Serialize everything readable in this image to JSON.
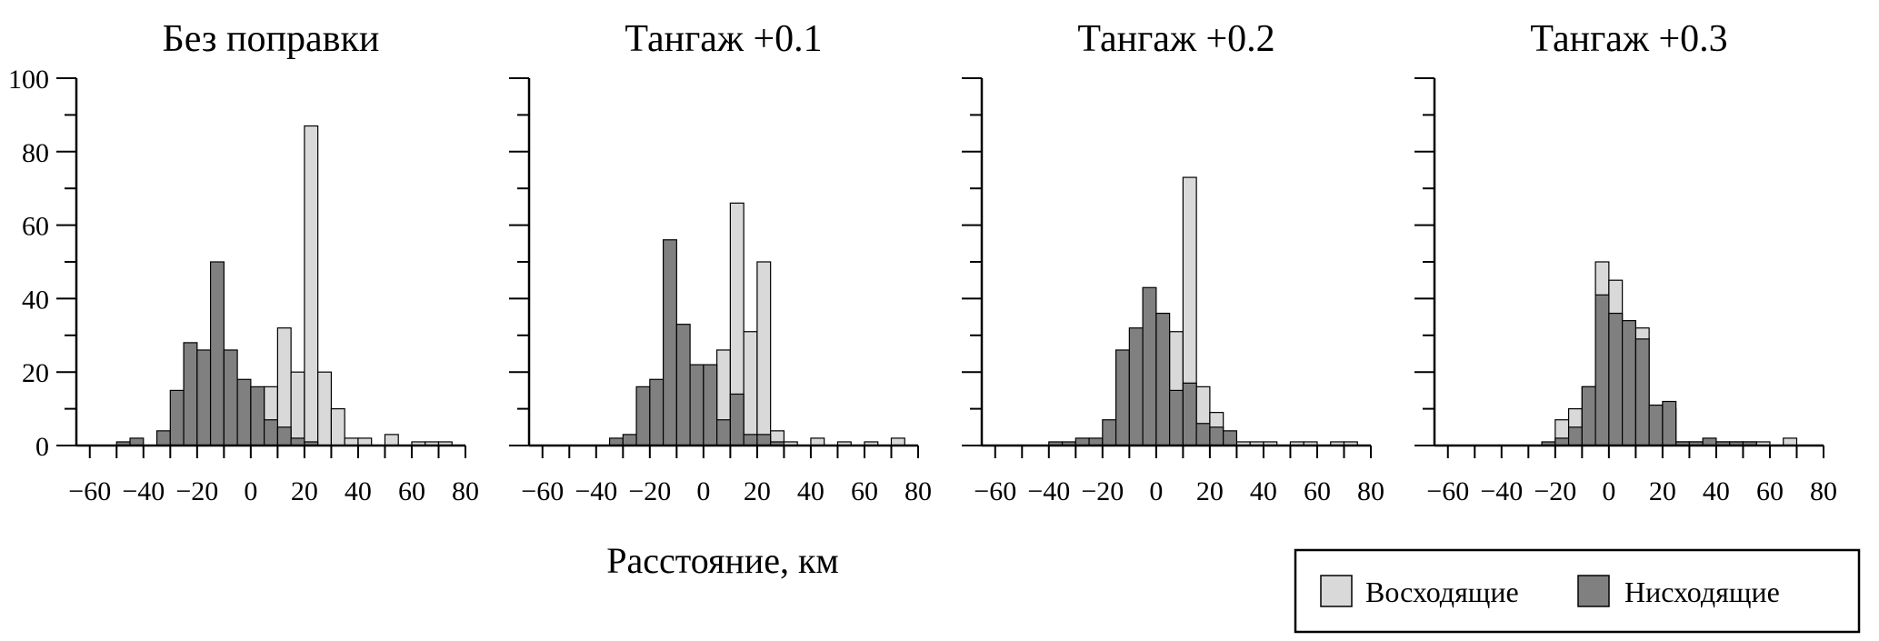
{
  "xlabel": "Расстояние, км",
  "legend": [
    {
      "label": "Восходящие",
      "color": "#d9d9d9"
    },
    {
      "label": "Нисходящие",
      "color": "#808080"
    }
  ],
  "chart_data": [
    {
      "type": "histogram",
      "title": "Без поправки",
      "xlim": [
        -65,
        80
      ],
      "ylim": [
        0,
        100
      ],
      "xticks": [
        -60,
        -40,
        -20,
        0,
        20,
        40,
        60,
        80
      ],
      "yticks": [
        0,
        20,
        40,
        60,
        80,
        100
      ],
      "bin_width": 5,
      "series": [
        {
          "name": "Восходящие",
          "bins": [
            {
              "x": 5,
              "y": 16
            },
            {
              "x": 10,
              "y": 32
            },
            {
              "x": 15,
              "y": 20
            },
            {
              "x": 20,
              "y": 87
            },
            {
              "x": 25,
              "y": 20
            },
            {
              "x": 30,
              "y": 10
            },
            {
              "x": 35,
              "y": 2
            },
            {
              "x": 40,
              "y": 2
            },
            {
              "x": 50,
              "y": 3
            },
            {
              "x": 60,
              "y": 1
            },
            {
              "x": 65,
              "y": 1
            },
            {
              "x": 70,
              "y": 1
            }
          ]
        },
        {
          "name": "Нисходящие",
          "bins": [
            {
              "x": -50,
              "y": 1
            },
            {
              "x": -45,
              "y": 2
            },
            {
              "x": -35,
              "y": 4
            },
            {
              "x": -30,
              "y": 15
            },
            {
              "x": -25,
              "y": 28
            },
            {
              "x": -20,
              "y": 26
            },
            {
              "x": -15,
              "y": 50
            },
            {
              "x": -10,
              "y": 26
            },
            {
              "x": -5,
              "y": 18
            },
            {
              "x": 0,
              "y": 16
            },
            {
              "x": 5,
              "y": 7
            },
            {
              "x": 10,
              "y": 5
            },
            {
              "x": 15,
              "y": 2
            },
            {
              "x": 20,
              "y": 1
            }
          ]
        }
      ]
    },
    {
      "type": "histogram",
      "title": "Тангаж +0.1",
      "xlim": [
        -65,
        80
      ],
      "ylim": [
        0,
        100
      ],
      "xticks": [
        -60,
        -40,
        -20,
        0,
        20,
        40,
        60,
        80
      ],
      "yticks": [
        0,
        20,
        40,
        60,
        80,
        100
      ],
      "bin_width": 5,
      "series": [
        {
          "name": "Восходящие",
          "bins": [
            {
              "x": -10,
              "y": 3
            },
            {
              "x": 0,
              "y": 6
            },
            {
              "x": 5,
              "y": 26
            },
            {
              "x": 10,
              "y": 66
            },
            {
              "x": 15,
              "y": 31
            },
            {
              "x": 20,
              "y": 50
            },
            {
              "x": 25,
              "y": 4
            },
            {
              "x": 30,
              "y": 1
            },
            {
              "x": 40,
              "y": 2
            },
            {
              "x": 50,
              "y": 1
            },
            {
              "x": 60,
              "y": 1
            },
            {
              "x": 70,
              "y": 2
            }
          ]
        },
        {
          "name": "Нисходящие",
          "bins": [
            {
              "x": -35,
              "y": 2
            },
            {
              "x": -30,
              "y": 3
            },
            {
              "x": -25,
              "y": 16
            },
            {
              "x": -20,
              "y": 18
            },
            {
              "x": -15,
              "y": 56
            },
            {
              "x": -10,
              "y": 33
            },
            {
              "x": -5,
              "y": 22
            },
            {
              "x": 0,
              "y": 22
            },
            {
              "x": 5,
              "y": 7
            },
            {
              "x": 10,
              "y": 14
            },
            {
              "x": 15,
              "y": 3
            },
            {
              "x": 20,
              "y": 3
            },
            {
              "x": 25,
              "y": 1
            }
          ]
        }
      ]
    },
    {
      "type": "histogram",
      "title": "Тангаж +0.2",
      "xlim": [
        -65,
        80
      ],
      "ylim": [
        0,
        100
      ],
      "xticks": [
        -60,
        -40,
        -20,
        0,
        20,
        40,
        60,
        80
      ],
      "yticks": [
        0,
        20,
        40,
        60,
        80,
        100
      ],
      "bin_width": 5,
      "series": [
        {
          "name": "Восходящие",
          "bins": [
            {
              "x": -20,
              "y": 1
            },
            {
              "x": -15,
              "y": 3
            },
            {
              "x": -10,
              "y": 9
            },
            {
              "x": -5,
              "y": 15
            },
            {
              "x": 0,
              "y": 21
            },
            {
              "x": 5,
              "y": 31
            },
            {
              "x": 10,
              "y": 73
            },
            {
              "x": 15,
              "y": 16
            },
            {
              "x": 20,
              "y": 9
            },
            {
              "x": 25,
              "y": 2
            },
            {
              "x": 30,
              "y": 1
            },
            {
              "x": 35,
              "y": 1
            },
            {
              "x": 40,
              "y": 1
            },
            {
              "x": 50,
              "y": 1
            },
            {
              "x": 55,
              "y": 1
            },
            {
              "x": 65,
              "y": 1
            },
            {
              "x": 70,
              "y": 1
            }
          ]
        },
        {
          "name": "Нисходящие",
          "bins": [
            {
              "x": -40,
              "y": 1
            },
            {
              "x": -35,
              "y": 1
            },
            {
              "x": -30,
              "y": 2
            },
            {
              "x": -25,
              "y": 2
            },
            {
              "x": -20,
              "y": 7
            },
            {
              "x": -15,
              "y": 26
            },
            {
              "x": -10,
              "y": 32
            },
            {
              "x": -5,
              "y": 43
            },
            {
              "x": 0,
              "y": 36
            },
            {
              "x": 5,
              "y": 15
            },
            {
              "x": 10,
              "y": 17
            },
            {
              "x": 15,
              "y": 6
            },
            {
              "x": 20,
              "y": 5
            },
            {
              "x": 25,
              "y": 4
            }
          ]
        }
      ]
    },
    {
      "type": "histogram",
      "title": "Тангаж +0.3",
      "xlim": [
        -65,
        80
      ],
      "ylim": [
        0,
        100
      ],
      "xticks": [
        -60,
        -40,
        -20,
        0,
        20,
        40,
        60,
        80
      ],
      "yticks": [
        0,
        20,
        40,
        60,
        80,
        100
      ],
      "bin_width": 5,
      "series": [
        {
          "name": "Восходящие",
          "bins": [
            {
              "x": -20,
              "y": 7
            },
            {
              "x": -15,
              "y": 10
            },
            {
              "x": -10,
              "y": 16
            },
            {
              "x": -5,
              "y": 50
            },
            {
              "x": 0,
              "y": 45
            },
            {
              "x": 5,
              "y": 25
            },
            {
              "x": 10,
              "y": 32
            },
            {
              "x": 15,
              "y": 10
            },
            {
              "x": 20,
              "y": 10
            },
            {
              "x": 25,
              "y": 1
            },
            {
              "x": 30,
              "y": 1
            },
            {
              "x": 35,
              "y": 1
            },
            {
              "x": 40,
              "y": 1
            },
            {
              "x": 45,
              "y": 1
            },
            {
              "x": 50,
              "y": 1
            },
            {
              "x": 55,
              "y": 1
            },
            {
              "x": 65,
              "y": 2
            }
          ]
        },
        {
          "name": "Нисходящие",
          "bins": [
            {
              "x": -25,
              "y": 1
            },
            {
              "x": -20,
              "y": 2
            },
            {
              "x": -15,
              "y": 5
            },
            {
              "x": -10,
              "y": 16
            },
            {
              "x": -5,
              "y": 41
            },
            {
              "x": 0,
              "y": 36
            },
            {
              "x": 5,
              "y": 34
            },
            {
              "x": 10,
              "y": 29
            },
            {
              "x": 15,
              "y": 11
            },
            {
              "x": 20,
              "y": 12
            },
            {
              "x": 25,
              "y": 1
            },
            {
              "x": 30,
              "y": 1
            },
            {
              "x": 35,
              "y": 2
            },
            {
              "x": 40,
              "y": 1
            },
            {
              "x": 45,
              "y": 1
            },
            {
              "x": 50,
              "y": 1
            }
          ]
        }
      ]
    }
  ]
}
